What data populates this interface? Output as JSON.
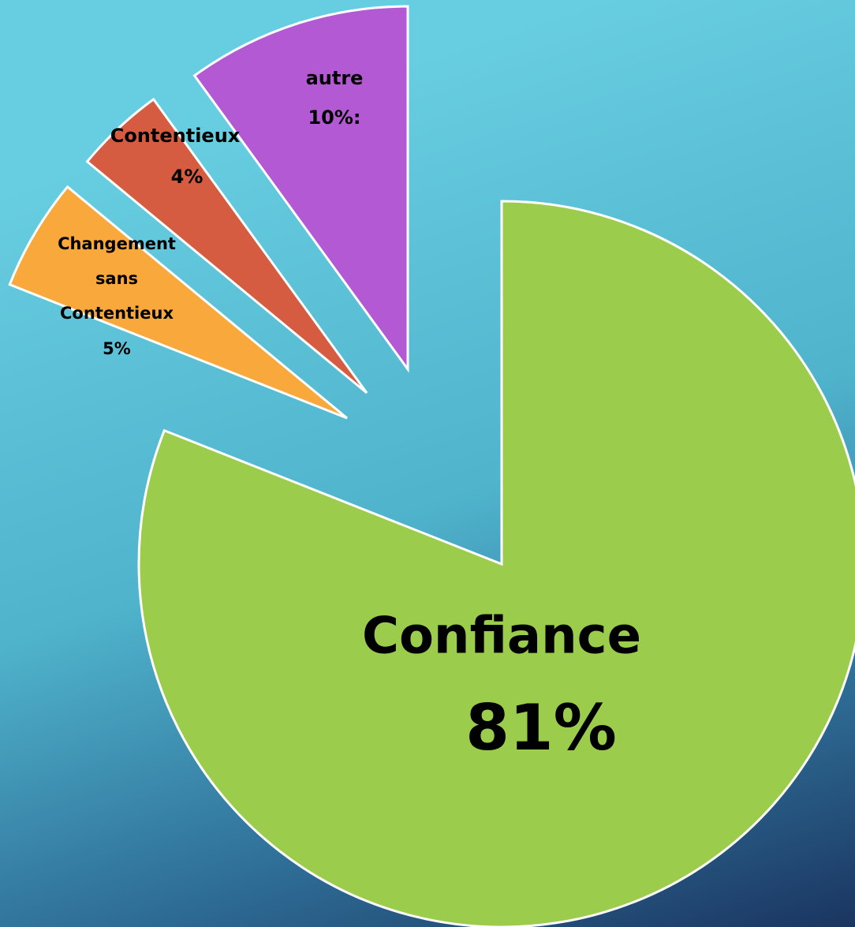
{
  "chart_data": {
    "type": "pie",
    "categories": [
      "Confiance",
      "Changement sans Contentieux",
      "Contentieux",
      "autre"
    ],
    "values": [
      81,
      5,
      4,
      10
    ],
    "value_labels": [
      "81%",
      "5%",
      "4%",
      "10%:"
    ],
    "colors": [
      "#9ccc4c",
      "#f9a83c",
      "#d55c40",
      "#b359d4"
    ]
  }
}
